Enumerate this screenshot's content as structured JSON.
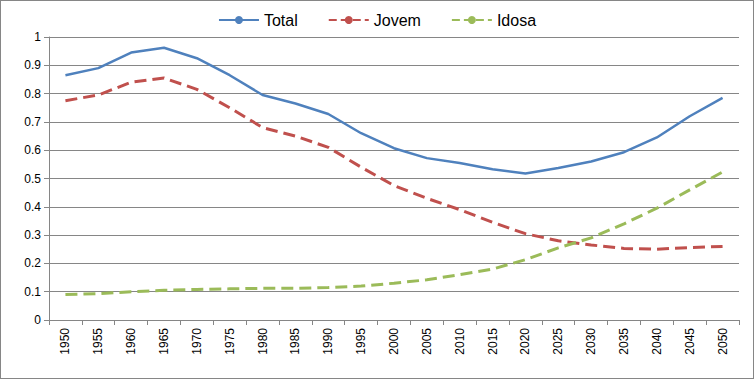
{
  "chart_data": {
    "type": "line",
    "categories": [
      "1950",
      "1955",
      "1960",
      "1965",
      "1970",
      "1975",
      "1980",
      "1985",
      "1990",
      "1995",
      "2000",
      "2005",
      "2010",
      "2015",
      "2020",
      "2025",
      "2030",
      "2035",
      "2040",
      "2045",
      "2050"
    ],
    "series": [
      {
        "name": "Total",
        "color": "#4f81bd",
        "line_style": "solid",
        "marker": "none",
        "values": [
          0.865,
          0.89,
          0.945,
          0.962,
          0.925,
          0.865,
          0.795,
          0.765,
          0.728,
          0.66,
          0.607,
          0.572,
          0.555,
          0.533,
          0.518,
          0.537,
          0.56,
          0.593,
          0.645,
          0.72,
          0.785
        ]
      },
      {
        "name": "Jovem",
        "color": "#c0504d",
        "line_style": "dashed",
        "marker": "none",
        "values": [
          0.775,
          0.795,
          0.84,
          0.855,
          0.815,
          0.75,
          0.68,
          0.65,
          0.61,
          0.54,
          0.475,
          0.43,
          0.39,
          0.345,
          0.305,
          0.28,
          0.265,
          0.253,
          0.25,
          0.256,
          0.26
        ]
      },
      {
        "name": "Idosa",
        "color": "#9bbb59",
        "line_style": "dashed",
        "marker": "none",
        "values": [
          0.09,
          0.093,
          0.1,
          0.105,
          0.108,
          0.11,
          0.112,
          0.112,
          0.115,
          0.12,
          0.13,
          0.142,
          0.16,
          0.18,
          0.213,
          0.255,
          0.29,
          0.34,
          0.395,
          0.46,
          0.523
        ]
      }
    ],
    "ylim": [
      0,
      1
    ],
    "yticks": [
      0,
      0.1,
      0.2,
      0.3,
      0.4,
      0.5,
      0.6,
      0.7,
      0.8,
      0.9,
      1
    ],
    "grid": true,
    "legend": "top"
  }
}
